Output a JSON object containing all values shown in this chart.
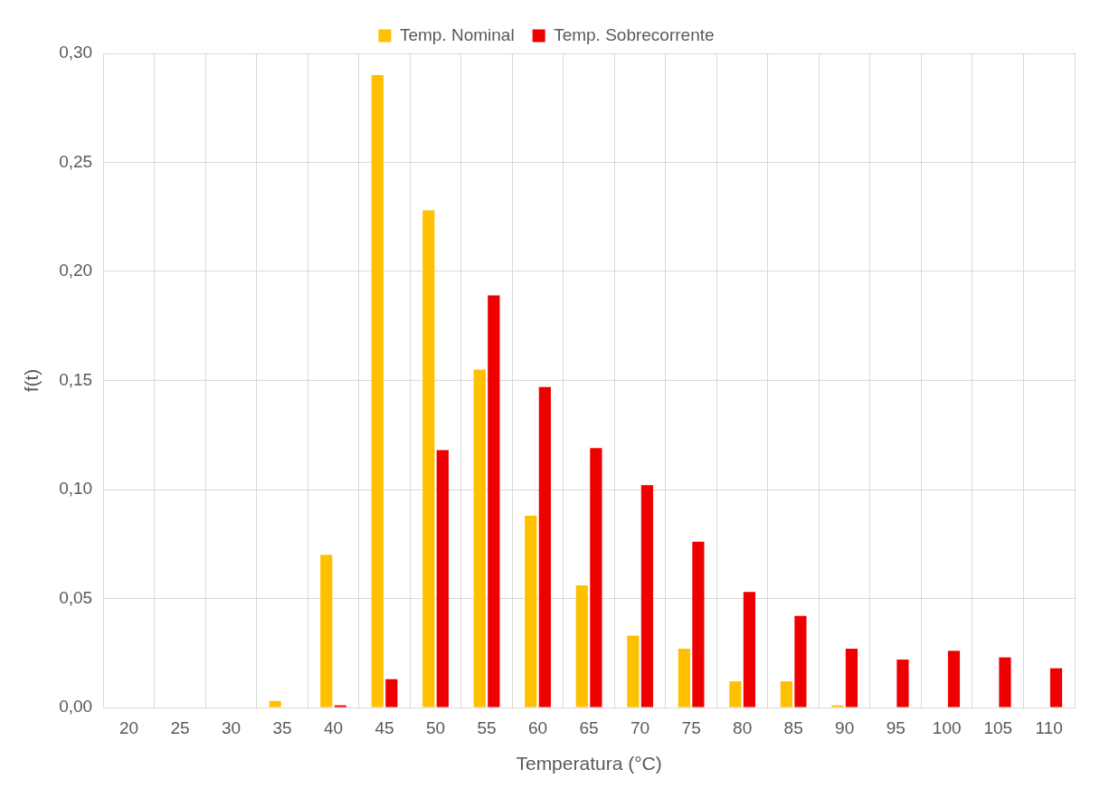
{
  "chart_data": {
    "type": "bar",
    "xlabel": "Temperatura (°C)",
    "ylabel": "f(t)",
    "categories": [
      "20",
      "25",
      "30",
      "35",
      "40",
      "45",
      "50",
      "55",
      "60",
      "65",
      "70",
      "75",
      "80",
      "85",
      "90",
      "95",
      "100",
      "105",
      "110"
    ],
    "series": [
      {
        "name": "Temp. Nominal",
        "color": "#ffc000",
        "values": [
          0,
          0,
          0,
          0.003,
          0.07,
          0.29,
          0.228,
          0.155,
          0.088,
          0.056,
          0.033,
          0.027,
          0.012,
          0.012,
          0.001,
          0,
          0,
          0,
          0
        ]
      },
      {
        "name": "Temp. Sobrecorrente",
        "color": "#ee0000",
        "values": [
          0,
          0,
          0,
          0,
          0.001,
          0.013,
          0.118,
          0.189,
          0.147,
          0.119,
          0.102,
          0.076,
          0.053,
          0.042,
          0.027,
          0.022,
          0.026,
          0.023,
          0.018
        ]
      }
    ],
    "ylim": [
      0,
      0.3
    ],
    "yticks": [
      {
        "value": 0,
        "label": "0,00"
      },
      {
        "value": 0.05,
        "label": "0,05"
      },
      {
        "value": 0.1,
        "label": "0,10"
      },
      {
        "value": 0.15,
        "label": "0,15"
      },
      {
        "value": 0.2,
        "label": "0,20"
      },
      {
        "value": 0.25,
        "label": "0,25"
      },
      {
        "value": 0.3,
        "label": "0,30"
      }
    ],
    "grid": true,
    "legend": "top"
  }
}
